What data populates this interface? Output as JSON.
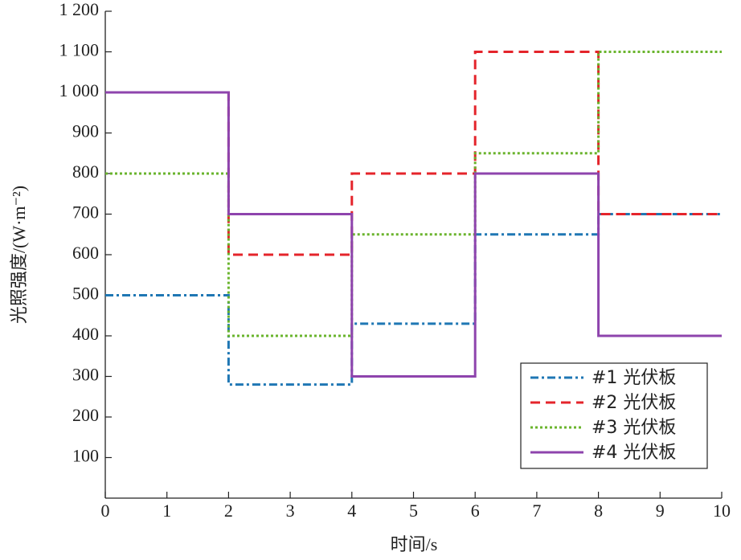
{
  "chart_data": {
    "type": "line",
    "x_label": "时间/s",
    "y_label": "光照强度/(W·m⁻²)",
    "x": [
      0,
      2,
      2,
      4,
      4,
      6,
      6,
      8,
      8,
      10
    ],
    "series": [
      {
        "name": "#1 光伏板",
        "color": "#1f77b4",
        "style": "dash-dot",
        "values": [
          500,
          500,
          280,
          280,
          430,
          430,
          650,
          650,
          700,
          700
        ]
      },
      {
        "name": "#2 光伏板",
        "color": "#e4242b",
        "style": "dash",
        "values": [
          1000,
          1000,
          600,
          600,
          800,
          800,
          1100,
          1100,
          700,
          700
        ]
      },
      {
        "name": "#3 光伏板",
        "color": "#6ab42d",
        "style": "dot",
        "values": [
          800,
          800,
          400,
          400,
          650,
          650,
          850,
          850,
          1100,
          1100
        ]
      },
      {
        "name": "#4 光伏板",
        "color": "#8e44ad",
        "style": "solid",
        "values": [
          1000,
          1000,
          700,
          700,
          300,
          300,
          800,
          800,
          400,
          400
        ]
      }
    ],
    "xlim": [
      0,
      10
    ],
    "xticks": [
      0,
      1,
      2,
      3,
      4,
      5,
      6,
      7,
      8,
      9,
      10
    ],
    "ylim": [
      0,
      1200
    ],
    "yticks": [
      100,
      200,
      300,
      400,
      500,
      600,
      700,
      800,
      900,
      {
        "value": 1000,
        "label": "1 000"
      },
      {
        "value": 1100,
        "label": "1 100"
      },
      {
        "value": 1200,
        "label": "1 200"
      }
    ],
    "legend": "lower-right"
  }
}
